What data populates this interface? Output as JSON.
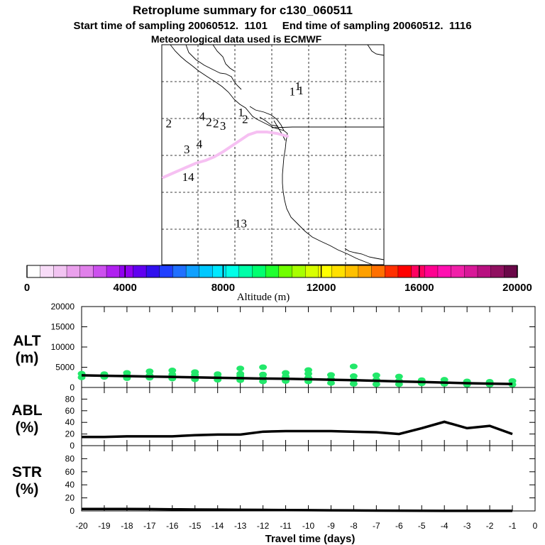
{
  "header": {
    "title": "Retroplume summary for c130_060511",
    "sampling_line": "Start time of sampling 20060512.  1101     End time of sampling 20060512.  1116",
    "met_line": "Meteorological data used is ECMWF"
  },
  "map": {
    "trajectory_color": "#f6c0f2",
    "labels": [
      {
        "text": "1",
        "lon": -122.2,
        "lat": 47.7
      },
      {
        "text": "1",
        "lon": -122.6,
        "lat": 47.3
      },
      {
        "text": "1",
        "lon": -122.0,
        "lat": 47.4
      },
      {
        "text": "1",
        "lon": -126.3,
        "lat": 45.8
      },
      {
        "text": "2",
        "lon": -126.0,
        "lat": 45.3
      },
      {
        "text": "4",
        "lon": -129.1,
        "lat": 45.5
      },
      {
        "text": "2",
        "lon": -128.6,
        "lat": 45.1
      },
      {
        "text": "2",
        "lon": -128.1,
        "lat": 45.0
      },
      {
        "text": "3",
        "lon": -127.6,
        "lat": 44.8
      },
      {
        "text": "2",
        "lon": -131.5,
        "lat": 45.0
      },
      {
        "text": "3",
        "lon": -130.2,
        "lat": 43.1
      },
      {
        "text": "4",
        "lon": -129.3,
        "lat": 43.5
      },
      {
        "text": "14",
        "lon": -130.1,
        "lat": 41.1
      },
      {
        "text": "13",
        "lon": -126.3,
        "lat": 37.7
      }
    ]
  },
  "colorbar": {
    "tick_labels": [
      "0",
      "4000",
      "8000",
      "12000",
      "16000",
      "20000"
    ],
    "label": "Altitude (m)",
    "colors": [
      "#ffffff",
      "#f8dcf8",
      "#f2c4f2",
      "#eaa0ec",
      "#e080ea",
      "#cc50ee",
      "#b020f0",
      "#9000f0",
      "#6000f0",
      "#3010ee",
      "#2040ff",
      "#2070ff",
      "#10a0ff",
      "#00c8ff",
      "#00e8ff",
      "#00ffe8",
      "#00ffa8",
      "#00ff70",
      "#20ff30",
      "#70ff00",
      "#a8ff00",
      "#d8ff00",
      "#ffff00",
      "#ffe000",
      "#ffc000",
      "#ffa000",
      "#ff7000",
      "#ff3000",
      "#ff0000",
      "#ff0060",
      "#ff0090",
      "#ff10b0",
      "#f020a8",
      "#d81898",
      "#b81080",
      "#901060",
      "#6a0848"
    ]
  },
  "chart_data": [
    {
      "type": "scatter",
      "panel": "ALT",
      "ylabel": "ALT\n(m)",
      "ylabel_line1": "ALT",
      "ylabel_line2": "(m)",
      "ylim": [
        0,
        20000
      ],
      "yticks": [
        "0",
        "5000",
        "10000",
        "15000",
        "20000"
      ],
      "xlim": [
        -20,
        0
      ],
      "x": [
        -20,
        -19,
        -18,
        -17,
        -16,
        -15,
        -14,
        -13,
        -12,
        -11,
        -10,
        -9,
        -8,
        -7,
        -6,
        -5,
        -4,
        -3,
        -2,
        -1
      ],
      "median_line": [
        3000,
        2900,
        2800,
        2700,
        2600,
        2500,
        2400,
        2300,
        2200,
        2150,
        2050,
        1900,
        1800,
        1650,
        1500,
        1350,
        1200,
        1050,
        950,
        850
      ],
      "points_color": "#22e86a",
      "points": [
        [
          -20,
          3400
        ],
        [
          -20,
          2500
        ],
        [
          -19,
          3300
        ],
        [
          -19,
          2600
        ],
        [
          -18,
          3600
        ],
        [
          -18,
          2900
        ],
        [
          -18,
          2300
        ],
        [
          -17,
          4000
        ],
        [
          -17,
          3000
        ],
        [
          -17,
          2400
        ],
        [
          -16,
          4200
        ],
        [
          -16,
          3200
        ],
        [
          -16,
          2200
        ],
        [
          -15,
          3800
        ],
        [
          -15,
          3100
        ],
        [
          -15,
          2000
        ],
        [
          -14,
          3300
        ],
        [
          -14,
          2600
        ],
        [
          -14,
          1900
        ],
        [
          -13,
          4700
        ],
        [
          -13,
          3400
        ],
        [
          -13,
          2900
        ],
        [
          -13,
          1800
        ],
        [
          -12,
          5000
        ],
        [
          -12,
          3200
        ],
        [
          -12,
          2300
        ],
        [
          -12,
          1500
        ],
        [
          -11,
          3600
        ],
        [
          -11,
          2700
        ],
        [
          -11,
          1600
        ],
        [
          -10,
          4300
        ],
        [
          -10,
          3400
        ],
        [
          -10,
          2400
        ],
        [
          -10,
          1500
        ],
        [
          -9,
          3100
        ],
        [
          -9,
          2100
        ],
        [
          -9,
          1100
        ],
        [
          -8,
          5200
        ],
        [
          -8,
          2800
        ],
        [
          -8,
          1800
        ],
        [
          -8,
          900
        ],
        [
          -7,
          3000
        ],
        [
          -7,
          1900
        ],
        [
          -7,
          800
        ],
        [
          -6,
          2700
        ],
        [
          -6,
          1600
        ],
        [
          -6,
          800
        ],
        [
          -5,
          1800
        ],
        [
          -5,
          1000
        ],
        [
          -4,
          1900
        ],
        [
          -4,
          900
        ],
        [
          -3,
          1500
        ],
        [
          -3,
          700
        ],
        [
          -2,
          1400
        ],
        [
          -2,
          700
        ],
        [
          -1,
          1600
        ],
        [
          -1,
          700
        ]
      ]
    },
    {
      "type": "line",
      "panel": "ABL",
      "ylabel_line1": "ABL",
      "ylabel_line2": "(%)",
      "ylim": [
        0,
        100
      ],
      "yticks": [
        "0",
        "20",
        "40",
        "60",
        "80"
      ],
      "x": [
        -20,
        -19,
        -18,
        -17,
        -16,
        -15,
        -14,
        -13,
        -12,
        -11,
        -10,
        -9,
        -8,
        -7,
        -6,
        -5,
        -4,
        -3,
        -2,
        -1
      ],
      "values": [
        15,
        15,
        16,
        16,
        16,
        18,
        19,
        19,
        24,
        25,
        25,
        25,
        24,
        23,
        20,
        30,
        41,
        30,
        34,
        20
      ]
    },
    {
      "type": "line",
      "panel": "STR",
      "ylabel_line1": "STR",
      "ylabel_line2": "(%)",
      "ylim": [
        0,
        100
      ],
      "yticks": [
        "0",
        "20",
        "40",
        "60",
        "80"
      ],
      "x": [
        -20,
        -19,
        -18,
        -17,
        -16,
        -15,
        -14,
        -13,
        -12,
        -11,
        -10,
        -9,
        -8,
        -7,
        -6,
        -5,
        -4,
        -3,
        -2,
        -1
      ],
      "values": [
        3,
        3,
        3,
        2.8,
        2.5,
        2.2,
        2,
        1.8,
        1.6,
        1.4,
        1.2,
        1,
        0.8,
        0.6,
        0.4,
        0.3,
        0.2,
        0.1,
        0.1,
        0.1
      ]
    }
  ],
  "xaxis": {
    "tick_labels": [
      "-20",
      "-19",
      "-18",
      "-17",
      "-16",
      "-15",
      "-14",
      "-13",
      "-12",
      "-11",
      "-10",
      "-9",
      "-8",
      "-7",
      "-6",
      "-5",
      "-4",
      "-3",
      "-2",
      "-1",
      "0"
    ],
    "label": "Travel time (days)"
  }
}
